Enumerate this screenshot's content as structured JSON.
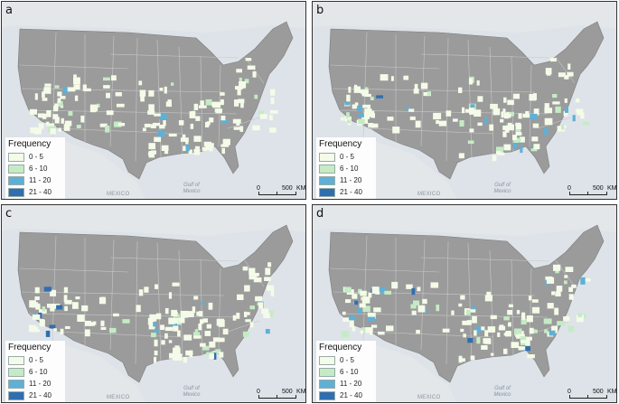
{
  "legend": {
    "title": "Frequency",
    "classes": [
      {
        "label": "0 - 5",
        "color": "#f4fbe8"
      },
      {
        "label": "6 - 10",
        "color": "#c5ebc4"
      },
      {
        "label": "11 - 20",
        "color": "#5fb0d6"
      },
      {
        "label": "21 - 40",
        "color": "#2f6fb0"
      }
    ]
  },
  "colors": {
    "land": "#9b9b9b",
    "water": "#dde3e8",
    "state_border": "#c8c8c8"
  },
  "labels": {
    "mexico": "MEXICO",
    "gulf": "Gulf of Mexico"
  },
  "scale": {
    "zero": "0",
    "five_hundred": "500",
    "unit": "KM"
  },
  "panels": [
    {
      "letter": "a"
    },
    {
      "letter": "b"
    },
    {
      "letter": "c"
    },
    {
      "letter": "d"
    }
  ]
}
